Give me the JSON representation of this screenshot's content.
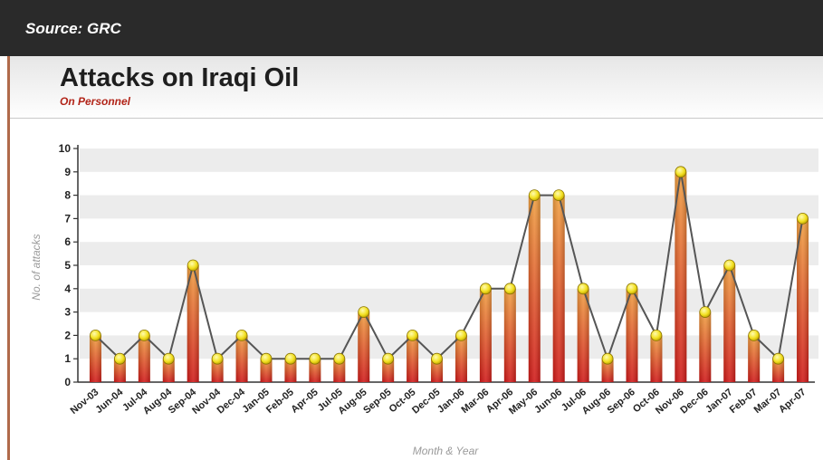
{
  "source": "Source: GRC",
  "title": "Attacks on Iraqi Oil",
  "subtitle": "On Personnel",
  "chart_data": {
    "type": "bar",
    "title": "Attacks on Iraqi Oil",
    "subtitle": "On Personnel",
    "xlabel": "Month & Year",
    "ylabel": "No. of attacks",
    "ylim": [
      0,
      10
    ],
    "yticks": [
      "0",
      "1",
      "2",
      "3",
      "4",
      "5",
      "6",
      "7",
      "8",
      "9",
      "10"
    ],
    "grid": "alternating horizontal bands",
    "overlay": "line connecting bar tops with yellow markers",
    "categories": [
      "Nov-03",
      "Jun-04",
      "Jul-04",
      "Aug-04",
      "Sep-04",
      "Nov-04",
      "Dec-04",
      "Jan-05",
      "Feb-05",
      "Apr-05",
      "Jul-05",
      "Aug-05",
      "Sep-05",
      "Oct-05",
      "Dec-05",
      "Jan-06",
      "Mar-06",
      "Apr-06",
      "May-06",
      "Jun-06",
      "Jul-06",
      "Aug-06",
      "Sep-06",
      "Oct-06",
      "Nov-06",
      "Dec-06",
      "Jan-07",
      "Feb-07",
      "Mar-07",
      "Apr-07"
    ],
    "values": [
      2,
      1,
      2,
      1,
      5,
      1,
      2,
      1,
      1,
      1,
      1,
      3,
      1,
      2,
      1,
      2,
      4,
      4,
      8,
      8,
      4,
      1,
      4,
      2,
      9,
      3,
      5,
      2,
      1,
      7
    ]
  },
  "colors": {
    "bar_top": "#f0a040",
    "bar_bottom": "#d01818",
    "line": "#555555",
    "marker": "#f2e020",
    "band": "#ececec"
  }
}
